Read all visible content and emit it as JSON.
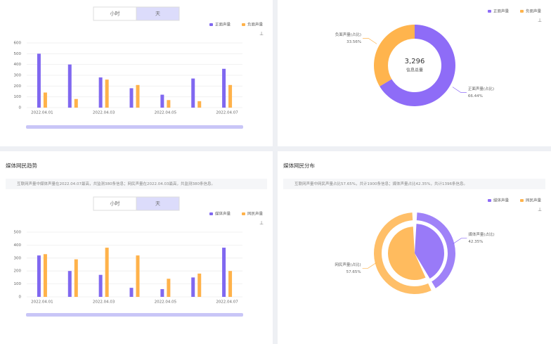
{
  "chart_data": [
    {
      "type": "bar",
      "toggle_options": [
        "小时",
        "天"
      ],
      "categories": [
        "2022.04.01",
        null,
        "2022.04.03",
        null,
        "2022.04.05",
        null,
        "2022.04.07"
      ],
      "series": [
        {
          "name": "正面声量",
          "color": "#8068f0",
          "values": [
            500,
            400,
            280,
            180,
            120,
            270,
            360
          ]
        },
        {
          "name": "负面声量",
          "color": "#ffb24a",
          "values": [
            140,
            80,
            260,
            210,
            70,
            60,
            210
          ]
        }
      ],
      "ylim": [
        0,
        600
      ],
      "yticks": [
        0,
        100,
        200,
        300,
        400,
        500,
        600
      ],
      "grid": true
    },
    {
      "type": "pie",
      "center_value": "3,296",
      "center_label": "信息总量",
      "categories": [
        "正面声量(占比)",
        "负面声量(占比)"
      ],
      "series": [
        {
          "name": "正面声量",
          "color": "#8e6cf7"
        },
        {
          "name": "负面声量",
          "color": "#ffb44d"
        }
      ],
      "values": [
        66.44,
        33.56
      ],
      "value_labels": [
        "66.44%",
        "33.56%"
      ]
    },
    {
      "type": "bar",
      "title": "媒体网民趋势",
      "subtitle": "互联网声量中媒体声量在2022.04.07最高，共监测380条信息；网民声量在2022.04.03最高，共监测380条信息。",
      "toggle_options": [
        "小时",
        "天"
      ],
      "categories": [
        "2022.04.01",
        null,
        "2022.04.03",
        null,
        "2022.04.05",
        null,
        "2022.04.07"
      ],
      "series": [
        {
          "name": "媒体声量",
          "color": "#8068f0",
          "values": [
            320,
            200,
            170,
            70,
            60,
            150,
            380
          ]
        },
        {
          "name": "网民声量",
          "color": "#ffb24a",
          "values": [
            330,
            290,
            380,
            320,
            140,
            180,
            200
          ]
        }
      ],
      "ylim": [
        0,
        500
      ],
      "yticks": [
        0,
        100,
        200,
        300,
        400,
        500
      ],
      "grid": true
    },
    {
      "type": "pie",
      "title": "媒体网民分布",
      "subtitle": "互联网声量中网民声量占比57.65%，共计1900条信息；媒体声量占比42.35%，共计1396条信息。",
      "categories": [
        "媒体声量(占比)",
        "网民声量(占比)"
      ],
      "series": [
        {
          "name": "媒体声量",
          "color": "#8e6cf7"
        },
        {
          "name": "网民声量",
          "color": "#ffb44d"
        }
      ],
      "values": [
        42.35,
        57.65
      ],
      "value_labels": [
        "42.35%",
        "57.65%"
      ]
    }
  ]
}
